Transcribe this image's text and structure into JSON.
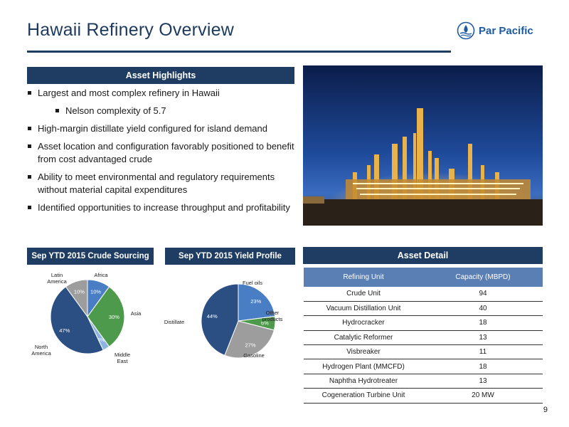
{
  "header": {
    "title": "Hawaii Refinery Overview",
    "logo_text": "Par Pacific"
  },
  "highlights": {
    "heading": "Asset Highlights",
    "items": [
      "Largest and most complex refinery in Hawaii",
      "Nelson complexity of 5.7",
      "High-margin distillate yield configured for island demand",
      "Asset location and configuration favorably positioned to benefit from cost advantaged crude",
      "Ability to meet environmental and regulatory requirements without material capital expenditures",
      "Identified opportunities to increase throughput and profitability"
    ]
  },
  "crude": {
    "heading": "Sep YTD 2015 Crude Sourcing"
  },
  "yield": {
    "heading": "Sep YTD 2015 Yield Profile"
  },
  "asset_detail": {
    "heading": "Asset Detail",
    "columns": [
      "Refining Unit",
      "Capacity (MBPD)"
    ],
    "rows": [
      [
        "Crude Unit",
        "94"
      ],
      [
        "Vacuum Distillation Unit",
        "40"
      ],
      [
        "Hydrocracker",
        "18"
      ],
      [
        "Catalytic Reformer",
        "13"
      ],
      [
        "Visbreaker",
        "11"
      ],
      [
        "Hydrogen Plant (MMCFD)",
        "18"
      ],
      [
        "Naphtha Hydrotreater",
        "13"
      ],
      [
        "Cogeneration Turbine Unit",
        "20 MW"
      ]
    ]
  },
  "page_number": "9",
  "colors": {
    "navy": "#1f3d63",
    "blue": "#4a7ec4",
    "green": "#4e9a4c",
    "gray": "#9d9d9d",
    "dark_blue": "#2b4f82",
    "light_blue": "#8db3e2"
  },
  "chart_data": [
    {
      "type": "pie",
      "title": "Sep YTD 2015 Crude Sourcing",
      "categories": [
        "Africa",
        "Asia",
        "Middle East",
        "North America",
        "Latin America"
      ],
      "values": [
        10,
        30,
        3,
        47,
        10
      ],
      "value_labels": [
        "10%",
        "30%",
        "3%",
        "47%",
        "10%"
      ],
      "colors": [
        "#4a7ec4",
        "#4e9a4c",
        "#8db3e2",
        "#2b4f82",
        "#9d9d9d"
      ]
    },
    {
      "type": "pie",
      "title": "Sep YTD 2015 Yield Profile",
      "categories": [
        "Fuel oils",
        "Other products",
        "Gasoline",
        "Distillate"
      ],
      "values": [
        23,
        6,
        27,
        44
      ],
      "value_labels": [
        "23%",
        "6%",
        "27%",
        "44%"
      ],
      "colors": [
        "#4a7ec4",
        "#4e9a4c",
        "#9d9d9d",
        "#2b4f82"
      ]
    }
  ]
}
